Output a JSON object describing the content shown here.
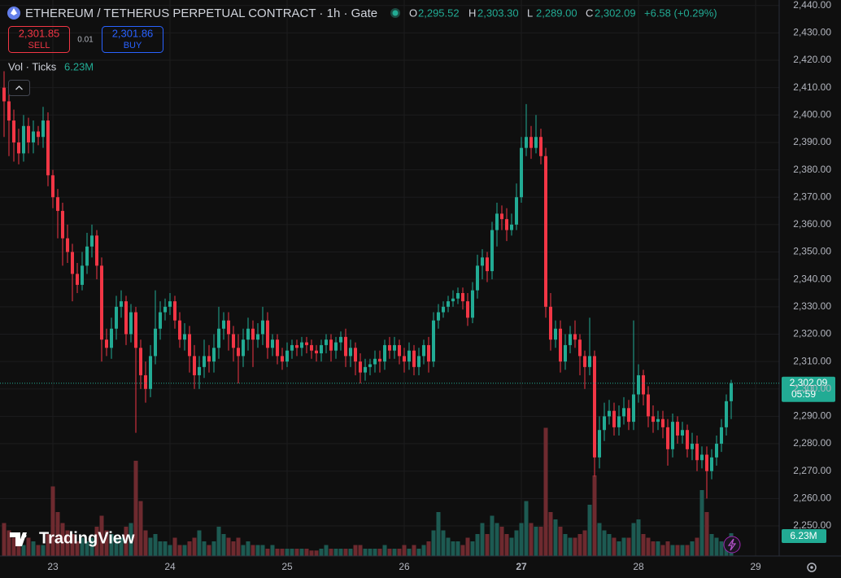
{
  "chart_data": {
    "type": "candlestick",
    "title": "ETHEREUM / TETHERUS PERPETUAL CONTRACT · 1h · Gate",
    "ohlc_legend": [
      {
        "key": "O",
        "label": "2,295.52"
      },
      {
        "key": "H",
        "label": "2,303.30"
      },
      {
        "key": "L",
        "label": "2,289.00"
      },
      {
        "key": "C",
        "label": "2,302.09"
      }
    ],
    "change_label": "+6.58 (+0.29%)",
    "sell": {
      "price": "2,301.85",
      "label": "SELL"
    },
    "spread": "0.01",
    "buy": {
      "price": "2,301.86",
      "label": "BUY"
    },
    "volume_title": "Vol · Ticks",
    "volume_label": "6.23M",
    "price_label": "2,302.09",
    "countdown": "05:59",
    "watermark": "TradingView",
    "xticks": [
      "23",
      "24",
      "25",
      "26",
      "27",
      "28",
      "29"
    ],
    "ylim": [
      2239,
      2442
    ],
    "yticks": [
      {
        "value": 2250,
        "label": "2,250.00"
      },
      {
        "value": 2260,
        "label": "2,260.00"
      },
      {
        "value": 2270,
        "label": "2,270.00"
      },
      {
        "value": 2280,
        "label": "2,280.00"
      },
      {
        "value": 2290,
        "label": "2,290.00"
      },
      {
        "value": 2300,
        "label": "2,300.00"
      },
      {
        "value": 2310,
        "label": "2,310.00"
      },
      {
        "value": 2320,
        "label": "2,320.00"
      },
      {
        "value": 2330,
        "label": "2,330.00"
      },
      {
        "value": 2340,
        "label": "2,340.00"
      },
      {
        "value": 2350,
        "label": "2,350.00"
      },
      {
        "value": 2360,
        "label": "2,360.00"
      },
      {
        "value": 2370,
        "label": "2,370.00"
      },
      {
        "value": 2380,
        "label": "2,380.00"
      },
      {
        "value": 2390,
        "label": "2,390.00"
      },
      {
        "value": 2400,
        "label": "2,400.00"
      },
      {
        "value": 2410,
        "label": "2,410.00"
      },
      {
        "value": 2420,
        "label": "2,420.00"
      },
      {
        "value": 2430,
        "label": "2,430.00"
      },
      {
        "value": 2440,
        "label": "2,440.00"
      }
    ],
    "up_color": "#22ab94",
    "down_color": "#f23645",
    "grid": true,
    "open": [
      2410,
      2405,
      2398,
      2390,
      2386,
      2396,
      2390,
      2394,
      2392,
      2398,
      2378,
      2370,
      2365,
      2355,
      2350,
      2342,
      2338,
      2345,
      2352,
      2356,
      2345,
      2318,
      2315,
      2322,
      2330,
      2332,
      2320,
      2328,
      2315,
      2305,
      2300,
      2312,
      2322,
      2328,
      2330,
      2332,
      2325,
      2318,
      2320,
      2312,
      2305,
      2308,
      2312,
      2310,
      2315,
      2322,
      2325,
      2320,
      2315,
      2312,
      2318,
      2322,
      2318,
      2320,
      2325,
      2315,
      2318,
      2312,
      2310,
      2314,
      2316,
      2315,
      2317,
      2316,
      2314,
      2313,
      2316,
      2318,
      2314,
      2317,
      2319,
      2312,
      2315,
      2310,
      2306,
      2308,
      2309,
      2311,
      2310,
      2316,
      2314,
      2316,
      2312,
      2310,
      2314,
      2308,
      2312,
      2316,
      2310,
      2325,
      2328,
      2330,
      2332,
      2333,
      2335,
      2332,
      2326,
      2336,
      2345,
      2348,
      2343,
      2358,
      2364,
      2362,
      2358,
      2360,
      2370,
      2388,
      2392,
      2388,
      2392,
      2385,
      2330,
      2318,
      2322,
      2310,
      2316,
      2320,
      2318,
      2312,
      2308,
      2312,
      2275,
      2285,
      2290,
      2292,
      2286,
      2290,
      2293,
      2288,
      2298,
      2305,
      2298,
      2290,
      2288,
      2289,
      2286,
      2278,
      2288,
      2283,
      2285,
      2278,
      2280,
      2274,
      2276,
      2270,
      2275,
      2280,
      2286,
      2295.52
    ],
    "high": [
      2416,
      2408,
      2402,
      2395,
      2400,
      2399,
      2398,
      2396,
      2403,
      2401,
      2380,
      2373,
      2368,
      2360,
      2353,
      2346,
      2350,
      2357,
      2360,
      2358,
      2348,
      2322,
      2326,
      2334,
      2336,
      2334,
      2331,
      2330,
      2318,
      2310,
      2316,
      2336,
      2332,
      2333,
      2335,
      2334,
      2328,
      2324,
      2323,
      2316,
      2312,
      2318,
      2316,
      2320,
      2330,
      2328,
      2328,
      2323,
      2320,
      2322,
      2326,
      2325,
      2324,
      2330,
      2328,
      2320,
      2320,
      2315,
      2317,
      2318,
      2318,
      2319,
      2319,
      2318,
      2316,
      2318,
      2320,
      2320,
      2319,
      2321,
      2322,
      2318,
      2317,
      2313,
      2311,
      2311,
      2314,
      2314,
      2318,
      2319,
      2319,
      2318,
      2315,
      2317,
      2316,
      2315,
      2318,
      2319,
      2328,
      2331,
      2332,
      2334,
      2336,
      2337,
      2337,
      2335,
      2339,
      2349,
      2351,
      2350,
      2361,
      2368,
      2367,
      2366,
      2364,
      2375,
      2392,
      2404,
      2396,
      2400,
      2395,
      2388,
      2335,
      2325,
      2325,
      2320,
      2323,
      2325,
      2320,
      2314,
      2326,
      2314,
      2290,
      2295,
      2296,
      2295,
      2294,
      2297,
      2296,
      2325,
      2309,
      2307,
      2301,
      2294,
      2292,
      2292,
      2289,
      2291,
      2290,
      2288,
      2287,
      2284,
      2283,
      2279,
      2279,
      2278,
      2283,
      2289,
      2298,
      2303.3
    ],
    "low": [
      2392,
      2385,
      2383,
      2382,
      2383,
      2386,
      2386,
      2389,
      2388,
      2374,
      2366,
      2355,
      2345,
      2346,
      2332,
      2335,
      2336,
      2342,
      2348,
      2340,
      2310,
      2312,
      2311,
      2318,
      2326,
      2316,
      2317,
      2284,
      2300,
      2295,
      2297,
      2309,
      2318,
      2325,
      2327,
      2322,
      2315,
      2314,
      2306,
      2300,
      2300,
      2304,
      2306,
      2306,
      2311,
      2318,
      2314,
      2310,
      2302,
      2308,
      2314,
      2308,
      2315,
      2316,
      2311,
      2312,
      2309,
      2307,
      2308,
      2311,
      2312,
      2312,
      2313,
      2311,
      2310,
      2310,
      2313,
      2310,
      2311,
      2314,
      2308,
      2308,
      2305,
      2302,
      2303,
      2305,
      2306,
      2306,
      2307,
      2311,
      2311,
      2309,
      2306,
      2307,
      2305,
      2305,
      2309,
      2306,
      2308,
      2322,
      2326,
      2328,
      2330,
      2331,
      2329,
      2323,
      2324,
      2333,
      2340,
      2339,
      2340,
      2352,
      2358,
      2354,
      2356,
      2358,
      2368,
      2385,
      2384,
      2386,
      2382,
      2326,
      2314,
      2315,
      2306,
      2307,
      2313,
      2315,
      2305,
      2300,
      2305,
      2268,
      2271,
      2281,
      2287,
      2283,
      2283,
      2287,
      2285,
      2285,
      2295,
      2294,
      2286,
      2284,
      2285,
      2282,
      2272,
      2275,
      2280,
      2280,
      2275,
      2274,
      2270,
      2271,
      2260,
      2267,
      2272,
      2277,
      2283,
      2289
    ],
    "close": [
      2405,
      2398,
      2390,
      2386,
      2396,
      2390,
      2394,
      2392,
      2398,
      2378,
      2370,
      2365,
      2355,
      2350,
      2342,
      2338,
      2345,
      2352,
      2356,
      2345,
      2318,
      2315,
      2322,
      2330,
      2332,
      2320,
      2328,
      2315,
      2305,
      2300,
      2312,
      2322,
      2328,
      2330,
      2332,
      2325,
      2318,
      2320,
      2312,
      2305,
      2308,
      2312,
      2310,
      2315,
      2322,
      2325,
      2320,
      2315,
      2312,
      2318,
      2322,
      2318,
      2320,
      2325,
      2315,
      2318,
      2312,
      2310,
      2314,
      2316,
      2315,
      2317,
      2316,
      2314,
      2313,
      2316,
      2318,
      2314,
      2317,
      2319,
      2312,
      2315,
      2310,
      2306,
      2308,
      2309,
      2311,
      2310,
      2316,
      2314,
      2316,
      2312,
      2310,
      2314,
      2308,
      2312,
      2316,
      2310,
      2325,
      2328,
      2330,
      2332,
      2333,
      2335,
      2332,
      2326,
      2336,
      2345,
      2348,
      2343,
      2358,
      2364,
      2362,
      2358,
      2360,
      2370,
      2388,
      2392,
      2388,
      2392,
      2385,
      2330,
      2318,
      2322,
      2310,
      2316,
      2320,
      2318,
      2312,
      2308,
      2312,
      2275,
      2285,
      2290,
      2292,
      2286,
      2290,
      2293,
      2288,
      2298,
      2305,
      2298,
      2290,
      2288,
      2289,
      2286,
      2278,
      2288,
      2283,
      2285,
      2278,
      2280,
      2274,
      2276,
      2270,
      2275,
      2280,
      2286,
      2295.52,
      2302.09
    ],
    "volume": [
      9,
      7,
      5,
      4,
      3,
      5,
      4,
      3,
      3,
      6,
      19,
      12,
      9,
      7,
      6,
      4,
      5,
      4,
      5,
      8,
      11,
      7,
      6,
      5,
      5,
      8,
      9,
      26,
      15,
      7,
      5,
      6,
      4,
      4,
      3,
      5,
      3,
      3,
      4,
      5,
      7,
      4,
      3,
      4,
      8,
      6,
      5,
      4,
      5,
      3,
      4,
      3,
      3,
      3,
      2,
      3,
      2,
      2,
      2,
      2,
      2,
      2,
      2,
      1.5,
      1.5,
      2,
      3,
      2,
      2,
      2,
      2,
      2,
      3,
      3,
      2,
      2,
      2,
      2,
      3,
      2,
      2,
      2,
      3,
      2,
      3,
      2,
      3,
      4,
      7,
      12,
      7,
      5,
      4,
      4,
      3,
      5,
      4,
      6,
      9,
      6,
      11,
      9,
      8,
      6,
      5,
      7,
      9,
      15,
      9,
      8,
      8,
      35,
      12,
      10,
      8,
      6,
      5,
      5,
      6,
      7,
      14,
      22,
      9,
      7,
      6,
      5,
      4,
      5,
      5,
      9,
      10,
      6,
      5,
      4,
      4,
      3,
      4,
      3,
      3,
      3,
      3,
      4,
      5,
      18,
      12,
      6,
      5,
      4,
      3,
      6.23
    ]
  }
}
